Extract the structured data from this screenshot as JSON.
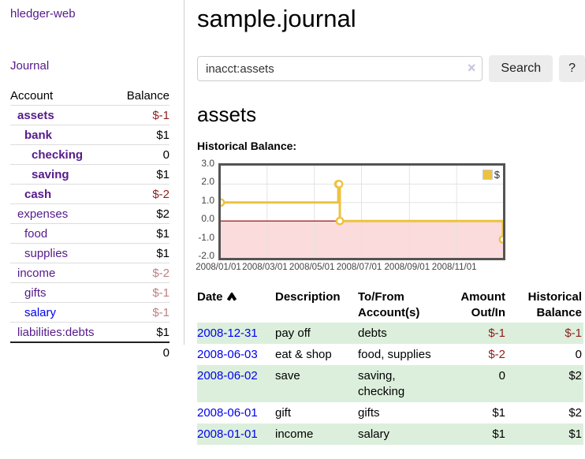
{
  "sidebar": {
    "app_title": "hledger-web",
    "nav_journal": "Journal",
    "accounts": {
      "col_account": "Account",
      "col_balance": "Balance",
      "rows": [
        {
          "name": "assets",
          "depth": 1,
          "bold": true,
          "balance": "$-1",
          "neg": "strong"
        },
        {
          "name": "bank",
          "depth": 2,
          "bold": true,
          "balance": "$1",
          "neg": "none"
        },
        {
          "name": "checking",
          "depth": 3,
          "bold": true,
          "balance": "0",
          "neg": "none"
        },
        {
          "name": "saving",
          "depth": 3,
          "bold": true,
          "balance": "$1",
          "neg": "none"
        },
        {
          "name": "cash",
          "depth": 2,
          "bold": true,
          "balance": "$-2",
          "neg": "strong"
        },
        {
          "name": "expenses",
          "depth": 1,
          "bold": false,
          "balance": "$2",
          "neg": "none"
        },
        {
          "name": "food",
          "depth": 2,
          "bold": false,
          "balance": "$1",
          "neg": "none"
        },
        {
          "name": "supplies",
          "depth": 2,
          "bold": false,
          "balance": "$1",
          "neg": "none"
        },
        {
          "name": "income",
          "depth": 1,
          "bold": false,
          "balance": "$-2",
          "neg": "soft"
        },
        {
          "name": "gifts",
          "depth": 2,
          "bold": false,
          "balance": "$-1",
          "neg": "soft"
        },
        {
          "name": "salary",
          "depth": 2,
          "bold": false,
          "blue": true,
          "balance": "$-1",
          "neg": "soft"
        },
        {
          "name": "liabilities:debts",
          "depth": 1,
          "bold": false,
          "balance": "$1",
          "neg": "none"
        }
      ],
      "total": "0"
    }
  },
  "main": {
    "title": "sample.journal",
    "search": {
      "value": "inacct:assets",
      "clear_icon": "×",
      "search_button": "Search",
      "help_button": "?"
    },
    "account_heading": "assets",
    "chart_label": "Historical Balance:",
    "register": {
      "headers": {
        "date": "Date",
        "description": "Description",
        "tofrom": "To/From Account(s)",
        "amount": "Amount Out/In",
        "balance": "Historical Balance"
      },
      "rows": [
        {
          "date": "2008-12-31",
          "description": "pay off",
          "accounts": "debts",
          "amount": "$-1",
          "amount_neg": true,
          "balance": "$-1",
          "balance_neg": true,
          "shaded": true
        },
        {
          "date": "2008-06-03",
          "description": "eat & shop",
          "accounts": "food, supplies",
          "amount": "$-2",
          "amount_neg": true,
          "balance": "0",
          "balance_neg": false,
          "shaded": false
        },
        {
          "date": "2008-06-02",
          "description": "save",
          "accounts": "saving, checking",
          "amount": "0",
          "amount_neg": false,
          "balance": "$2",
          "balance_neg": false,
          "shaded": true
        },
        {
          "date": "2008-06-01",
          "description": "gift",
          "accounts": "gifts",
          "amount": "$1",
          "amount_neg": false,
          "balance": "$2",
          "balance_neg": false,
          "shaded": false
        },
        {
          "date": "2008-01-01",
          "description": "income",
          "accounts": "salary",
          "amount": "$1",
          "amount_neg": false,
          "balance": "$1",
          "balance_neg": false,
          "shaded": true
        }
      ]
    }
  },
  "chart_data": {
    "type": "line",
    "step": true,
    "title": "Historical Balance",
    "series": [
      {
        "name": "$",
        "color": "#edc240",
        "points": [
          [
            "2008-01-01",
            1
          ],
          [
            "2008-06-01",
            2
          ],
          [
            "2008-06-02",
            2
          ],
          [
            "2008-06-03",
            0
          ],
          [
            "2008-12-31",
            -1
          ]
        ]
      }
    ],
    "xlim": [
      "2008-01-01",
      "2008-12-31"
    ],
    "ylim": [
      -2,
      3
    ],
    "yticks": [
      "3.0",
      "2.0",
      "1.0",
      "0.0",
      "-1.0",
      "-2.0"
    ],
    "xticks": [
      "2008/01/01",
      "2008/03/01",
      "2008/05/01",
      "2008/07/01",
      "2008/09/01",
      "2008/11/01"
    ],
    "legend_label": "$",
    "legend_position": "top-right",
    "grid": true,
    "colors": {
      "line": "#edc240",
      "marker_fill": "#ffffff",
      "negative_region": "#fbdbdb",
      "zero_line": "#8b0000",
      "grid_line": "#e3e3e3",
      "plot_border": "#545454"
    }
  }
}
